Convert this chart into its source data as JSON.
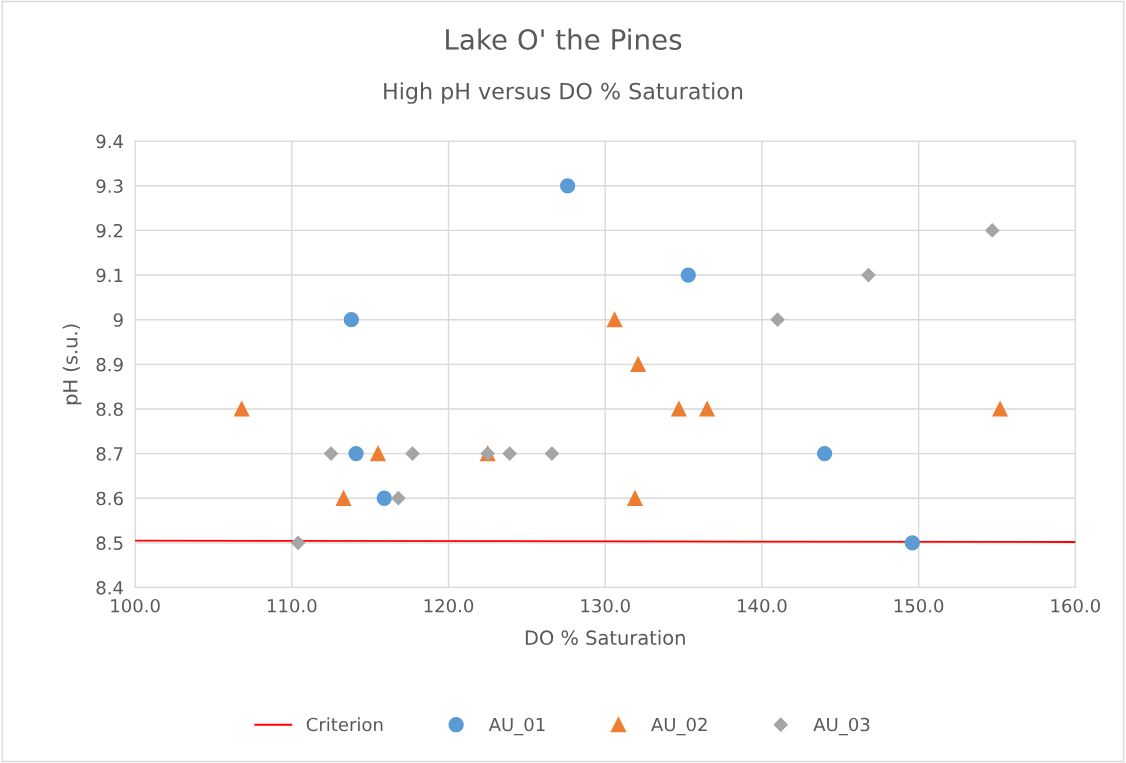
{
  "chart_data": {
    "type": "scatter",
    "title": "Lake O' the Pines",
    "subtitle": "High pH versus DO % Saturation",
    "xlabel": "DO % Saturation",
    "ylabel": "pH (s.u.)",
    "xlim": [
      100,
      160
    ],
    "xticks": [
      {
        "value": 100,
        "label": "100.0"
      },
      {
        "value": 110,
        "label": "110.0"
      },
      {
        "value": 120,
        "label": "120.0"
      },
      {
        "value": 130,
        "label": "130.0"
      },
      {
        "value": 140,
        "label": "140.0"
      },
      {
        "value": 150,
        "label": "150.0"
      },
      {
        "value": 160,
        "label": "160.0"
      }
    ],
    "ylim": [
      8.4,
      9.4
    ],
    "yticks": [
      8.4,
      8.5,
      8.6,
      8.7,
      8.8,
      8.9,
      9,
      9.1,
      9.2,
      9.3,
      9.4
    ],
    "grid": true,
    "legend": "bottom",
    "series": [
      {
        "name": "Criterion",
        "type": "line",
        "color": "#ff0000",
        "marker": "none",
        "line_style": "solid",
        "x": [
          100,
          160
        ],
        "values": [
          8.505,
          8.502
        ]
      },
      {
        "name": "AU_01",
        "color": "#5b9bd5",
        "marker": "circle",
        "x": [
          113.8,
          127.6,
          135.3,
          114.1,
          115.9,
          144.0,
          149.6
        ],
        "values": [
          9.0,
          9.3,
          9.1,
          8.7,
          8.6,
          8.7,
          8.5
        ]
      },
      {
        "name": "AU_02",
        "color": "#ed7d31",
        "marker": "triangle",
        "x": [
          106.8,
          113.3,
          115.5,
          122.5,
          130.6,
          132.1,
          131.9,
          134.7,
          136.5,
          155.2
        ],
        "values": [
          8.8,
          8.6,
          8.7,
          8.7,
          9.0,
          8.9,
          8.6,
          8.8,
          8.8,
          8.8
        ]
      },
      {
        "name": "AU_03",
        "color": "#a5a5a5",
        "marker": "diamond",
        "x": [
          110.4,
          112.5,
          116.8,
          117.7,
          122.5,
          123.9,
          126.6,
          141.0,
          146.8,
          154.7
        ],
        "values": [
          8.5,
          8.7,
          8.6,
          8.7,
          8.7,
          8.7,
          8.7,
          9.0,
          9.1,
          9.2
        ]
      }
    ]
  }
}
